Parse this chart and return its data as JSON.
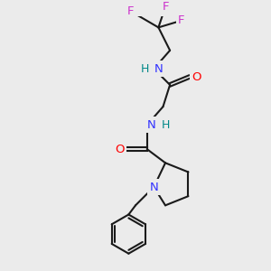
{
  "background_color": "#ebebeb",
  "bond_color": "#1a1a1a",
  "atom_colors": {
    "N": "#3333ff",
    "O": "#ff0000",
    "F": "#cc33cc",
    "H": "#008888",
    "C": "#1a1a1a"
  },
  "figsize": [
    3.0,
    3.0
  ],
  "dpi": 100
}
